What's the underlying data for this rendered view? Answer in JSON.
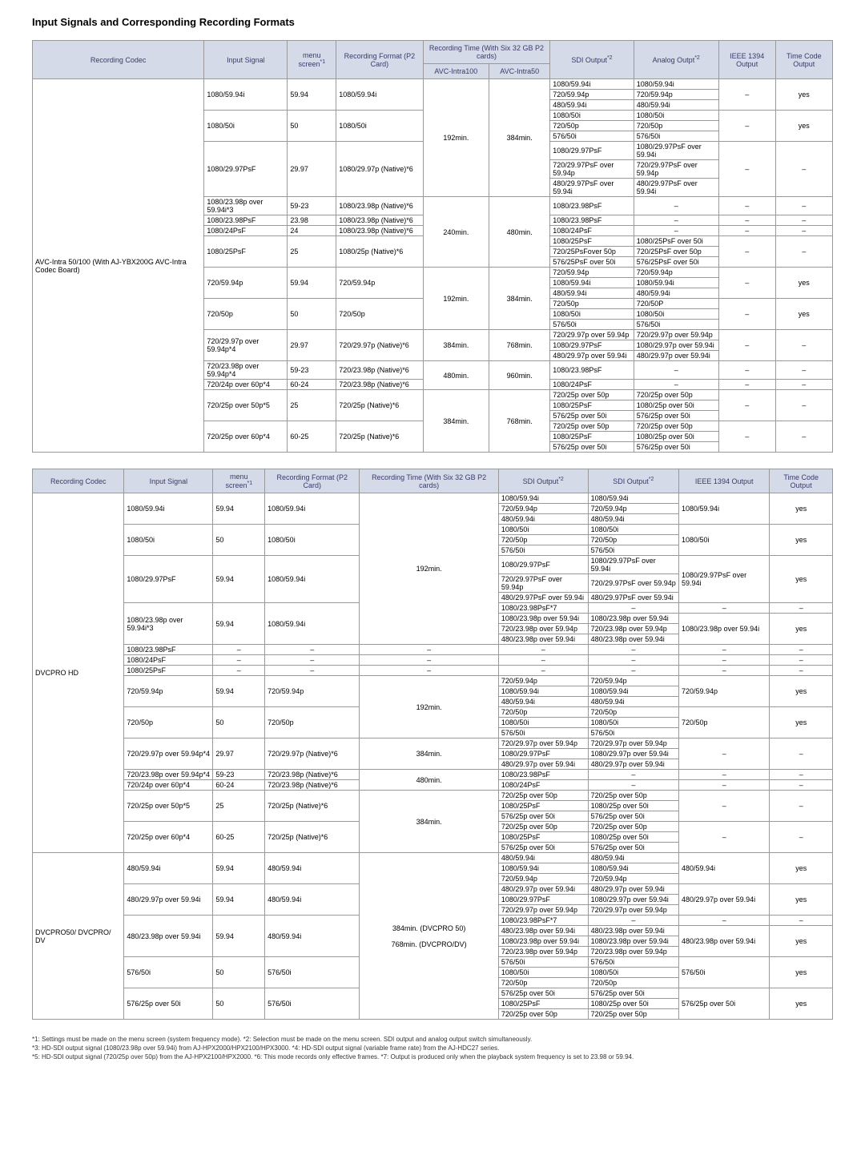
{
  "title": "Input Signals and Corresponding Recording Formats",
  "table1": {
    "headers": {
      "codec": "Recording Codec",
      "input": "Input Signal",
      "menu": "menu screen",
      "menu_sup": "*1",
      "format": "Recording Format (P2 Card)",
      "rectime": "Recording Time (With Six 32 GB P2 cards)",
      "avc100": "AVC-Intra100",
      "avc50": "AVC-Intra50",
      "sdi": "SDI Output",
      "sdi_sup": "*2",
      "analog": "Analog Outpt",
      "analog_sup": "*2",
      "ieee": "IEEE 1394 Output",
      "tc": "Time Code Output"
    },
    "codec_label": "AVC-Intra 50/100 (With AJ-YBX200G AVC-Intra Codec Board)",
    "groups": [
      {
        "input": "1080/59.94i",
        "menu": "59.94",
        "format": "1080/59.94i",
        "rt100": "192min.",
        "rt50": "384min.",
        "rows": [
          {
            "sdi": "1080/59.94i",
            "analog": "1080/59.94i",
            "ieee": "–",
            "tc": "yes"
          },
          {
            "sdi": "720/59.94p",
            "analog": "720/59.94p"
          },
          {
            "sdi": "480/59.94i",
            "analog": "480/59.94i"
          }
        ]
      },
      {
        "input": "1080/50i",
        "menu": "50",
        "format": "1080/50i",
        "rows": [
          {
            "sdi": "1080/50i",
            "analog": "1080/50i",
            "ieee": "–",
            "tc": "yes"
          },
          {
            "sdi": "720/50p",
            "analog": "720/50p"
          },
          {
            "sdi": "576/50i",
            "analog": "576/50i"
          }
        ]
      },
      {
        "input": "1080/29.97PsF",
        "menu": "29.97",
        "format": "1080/29.97p (Native)*6",
        "rows": [
          {
            "sdi": "1080/29.97PsF",
            "analog": "1080/29.97PsF over 59.94i",
            "ieee": "–",
            "tc": "–"
          },
          {
            "sdi": "720/29.97PsF over 59.94p",
            "analog": "720/29.97PsF over 59.94p"
          },
          {
            "sdi": "480/29.97PsF over 59.94i",
            "analog": "480/29.97PsF over 59.94i"
          }
        ]
      },
      {
        "input": "1080/23.98p over 59.94i*3",
        "menu": "59-23",
        "format": "1080/23.98p (Native)*6",
        "rt100": "240min.",
        "rt50": "480min.",
        "rows": [
          {
            "sdi": "1080/23.98PsF",
            "analog": "–",
            "ieee": "–",
            "tc": "–"
          }
        ]
      },
      {
        "input": "1080/23.98PsF",
        "menu": "23.98",
        "format": "1080/23.98p (Native)*6",
        "rows": [
          {
            "sdi": "1080/23.98PsF",
            "analog": "–",
            "ieee": "–",
            "tc": "–"
          }
        ]
      },
      {
        "input": "1080/24PsF",
        "menu": "24",
        "format": "1080/23.98p (Native)*6",
        "rows": [
          {
            "sdi": "1080/24PsF",
            "analog": "–",
            "ieee": "–",
            "tc": "–"
          }
        ]
      },
      {
        "input": "1080/25PsF",
        "menu": "25",
        "format": "1080/25p (Native)*6",
        "rows": [
          {
            "sdi": "1080/25PsF",
            "analog": "1080/25PsF over 50i",
            "ieee": "–",
            "tc": "–"
          },
          {
            "sdi": "720/25PsFover 50p",
            "analog": "720/25PsF over 50p"
          },
          {
            "sdi": "576/25PsF over 50i",
            "analog": "576/25PsF over 50i"
          }
        ]
      },
      {
        "input": "720/59.94p",
        "menu": "59.94",
        "format": "720/59.94p",
        "rt100": "192min.",
        "rt50": "384min.",
        "rows": [
          {
            "sdi": "720/59.94p",
            "analog": "720/59.94p",
            "ieee": "–",
            "tc": "yes"
          },
          {
            "sdi": "1080/59.94i",
            "analog": "1080/59.94i"
          },
          {
            "sdi": "480/59.94i",
            "analog": "480/59.94i"
          }
        ]
      },
      {
        "input": "720/50p",
        "menu": "50",
        "format": "720/50p",
        "rows": [
          {
            "sdi": "720/50p",
            "analog": "720/50P",
            "ieee": "–",
            "tc": "yes"
          },
          {
            "sdi": "1080/50i",
            "analog": "1080/50i"
          },
          {
            "sdi": "576/50i",
            "analog": "576/50i"
          }
        ]
      },
      {
        "input": "720/29.97p over 59.94p*4",
        "menu": "29.97",
        "format": "720/29.97p (Native)*6",
        "rt100": "384min.",
        "rt50": "768min.",
        "rows": [
          {
            "sdi": "720/29.97p over 59.94p",
            "analog": "720/29.97p over 59.94p",
            "ieee": "–",
            "tc": "–"
          },
          {
            "sdi": "1080/29.97PsF",
            "analog": "1080/29.97p over 59.94i"
          },
          {
            "sdi": "480/29.97p over 59.94i",
            "analog": "480/29.97p over 59.94i"
          }
        ]
      },
      {
        "input": "720/23.98p over 59.94p*4",
        "menu": "59-23",
        "format": "720/23.98p (Native)*6",
        "rt100": "480min.",
        "rt50": "960min.",
        "rows": [
          {
            "sdi": "1080/23.98PsF",
            "analog": "–",
            "ieee": "–",
            "tc": "–"
          }
        ]
      },
      {
        "input": "720/24p over 60p*4",
        "menu": "60-24",
        "format": "720/23.98p (Native)*6",
        "rows": [
          {
            "sdi": "1080/24PsF",
            "analog": "–",
            "ieee": "–",
            "tc": "–"
          }
        ]
      },
      {
        "input": "720/25p over 50p*5",
        "menu": "25",
        "format": "720/25p (Native)*6",
        "rt100": "384min.",
        "rt50": "768min.",
        "rows": [
          {
            "sdi": "720/25p over 50p",
            "analog": "720/25p over 50p",
            "ieee": "–",
            "tc": "–"
          },
          {
            "sdi": "1080/25PsF",
            "analog": "1080/25p over 50i"
          },
          {
            "sdi": "576/25p over 50i",
            "analog": "576/25p over 50i"
          }
        ]
      },
      {
        "input": "720/25p over 60p*4",
        "menu": "60-25",
        "format": "720/25p (Native)*6",
        "rows": [
          {
            "sdi": "720/25p over 50p",
            "analog": "720/25p over 50p",
            "ieee": "–",
            "tc": "–"
          },
          {
            "sdi": "1080/25PsF",
            "analog": "1080/25p over 50i"
          },
          {
            "sdi": "576/25p over 50i",
            "analog": "576/25p over 50i"
          }
        ]
      }
    ]
  },
  "table2": {
    "headers": {
      "codec": "Recording Codec",
      "input": "Input Signal",
      "menu": "menu screen",
      "menu_sup": "*1",
      "format": "Recording Format (P2 Card)",
      "rectime": "Recording Time (With Six 32 GB P2 cards)",
      "sdi1": "SDI Output",
      "sdi1_sup": "*2",
      "sdi2": "SDI Output",
      "sdi2_sup": "*2",
      "ieee": "IEEE 1394 Output",
      "tc": "Time Code Output"
    },
    "codec1_label": "DVCPRO HD",
    "codec2_label": "DVCPRO50/ DVCPRO/ DV",
    "dvcprohd_groups": [
      {
        "input": "1080/59.94i",
        "menu": "59.94",
        "format": "1080/59.94i",
        "rt": "192min.",
        "rows": [
          {
            "sdi1": "1080/59.94i",
            "sdi2": "1080/59.94i",
            "ieee": "1080/59.94i",
            "tc": "yes"
          },
          {
            "sdi1": "720/59.94p",
            "sdi2": "720/59.94p"
          },
          {
            "sdi1": "480/59.94i",
            "sdi2": "480/59.94i"
          }
        ]
      },
      {
        "input": "1080/50i",
        "menu": "50",
        "format": "1080/50i",
        "rows": [
          {
            "sdi1": "1080/50i",
            "sdi2": "1080/50i",
            "ieee": "1080/50i",
            "tc": "yes"
          },
          {
            "sdi1": "720/50p",
            "sdi2": "720/50p"
          },
          {
            "sdi1": "576/50i",
            "sdi2": "576/50i"
          }
        ]
      },
      {
        "input": "1080/29.97PsF",
        "menu": "59.94",
        "format": "1080/59.94i",
        "rows": [
          {
            "sdi1": "1080/29.97PsF",
            "sdi2": "1080/29.97PsF over 59.94i",
            "ieee": "1080/29.97PsF over 59.94i",
            "tc": "yes"
          },
          {
            "sdi1": "720/29.97PsF over 59.94p",
            "sdi2": "720/29.97PsF over 59.94p"
          },
          {
            "sdi1": "480/29.97PsF over 59.94i",
            "sdi2": "480/29.97PsF over 59.94i"
          }
        ]
      },
      {
        "input": "1080/23.98p over 59.94i*3",
        "menu": "59.94",
        "format": "1080/59.94i",
        "rows": [
          {
            "sdi1": "1080/23.98PsF*7",
            "sdi2": "–",
            "ieee": "–",
            "tc": "–"
          },
          {
            "sdi1": "1080/23.98p over 59.94i",
            "sdi2": "1080/23.98p over 59.94i",
            "ieee": "1080/23.98p over 59.94i",
            "tc": "yes"
          },
          {
            "sdi1": "720/23.98p over 59.94p",
            "sdi2": "720/23.98p over 59.94p"
          },
          {
            "sdi1": "480/23.98p over 59.94i",
            "sdi2": "480/23.98p over 59.94i"
          }
        ]
      },
      {
        "input": "1080/23.98PsF",
        "menu": "–",
        "format": "–",
        "rt": "–",
        "rows": [
          {
            "sdi1": "–",
            "sdi2": "–",
            "ieee": "–",
            "tc": "–"
          }
        ]
      },
      {
        "input": "1080/24PsF",
        "menu": "–",
        "format": "–",
        "rt": "–",
        "rows": [
          {
            "sdi1": "–",
            "sdi2": "–",
            "ieee": "–",
            "tc": "–"
          }
        ]
      },
      {
        "input": "1080/25PsF",
        "menu": "–",
        "format": "–",
        "rt": "–",
        "rows": [
          {
            "sdi1": "–",
            "sdi2": "–",
            "ieee": "–",
            "tc": "–"
          }
        ]
      },
      {
        "input": "720/59.94p",
        "menu": "59.94",
        "format": "720/59.94p",
        "rt": "192min.",
        "rows": [
          {
            "sdi1": "720/59.94p",
            "sdi2": "720/59.94p",
            "ieee": "720/59.94p",
            "tc": "yes"
          },
          {
            "sdi1": "1080/59.94i",
            "sdi2": "1080/59.94i"
          },
          {
            "sdi1": "480/59.94i",
            "sdi2": "480/59.94i"
          }
        ]
      },
      {
        "input": "720/50p",
        "menu": "50",
        "format": "720/50p",
        "rows": [
          {
            "sdi1": "720/50p",
            "sdi2": "720/50p",
            "ieee": "720/50p",
            "tc": "yes"
          },
          {
            "sdi1": "1080/50i",
            "sdi2": "1080/50i"
          },
          {
            "sdi1": "576/50i",
            "sdi2": "576/50i"
          }
        ]
      },
      {
        "input": "720/29.97p over 59.94p*4",
        "menu": "29.97",
        "format": "720/29.97p (Native)*6",
        "rt": "384min.",
        "rows": [
          {
            "sdi1": "720/29.97p over 59.94p",
            "sdi2": "720/29.97p over 59.94p",
            "ieee": "–",
            "tc": "–"
          },
          {
            "sdi1": "1080/29.97PsF",
            "sdi2": "1080/29.97p over 59.94i"
          },
          {
            "sdi1": "480/29.97p over 59.94i",
            "sdi2": "480/29.97p over 59.94i"
          }
        ]
      },
      {
        "input": "720/23.98p over 59.94p*4",
        "menu": "59-23",
        "format": "720/23.98p (Native)*6",
        "rt": "480min.",
        "rows": [
          {
            "sdi1": "1080/23.98PsF",
            "sdi2": "–",
            "ieee": "–",
            "tc": "–"
          }
        ]
      },
      {
        "input": "720/24p over 60p*4",
        "menu": "60-24",
        "format": "720/23.98p (Native)*6",
        "rows": [
          {
            "sdi1": "1080/24PsF",
            "sdi2": "–",
            "ieee": "–",
            "tc": "–"
          }
        ]
      },
      {
        "input": "720/25p over 50p*5",
        "menu": "25",
        "format": "720/25p (Native)*6",
        "rt": "384min.",
        "rows": [
          {
            "sdi1": "720/25p over 50p",
            "sdi2": "720/25p over 50p",
            "ieee": "–",
            "tc": "–"
          },
          {
            "sdi1": "1080/25PsF",
            "sdi2": "1080/25p over 50i"
          },
          {
            "sdi1": "576/25p over 50i",
            "sdi2": "576/25p over 50i"
          }
        ]
      },
      {
        "input": "720/25p over 60p*4",
        "menu": "60-25",
        "format": "720/25p (Native)*6",
        "rows": [
          {
            "sdi1": "720/25p over 50p",
            "sdi2": "720/25p over 50p",
            "ieee": "–",
            "tc": "–"
          },
          {
            "sdi1": "1080/25PsF",
            "sdi2": "1080/25p over 50i"
          },
          {
            "sdi1": "576/25p over 50i",
            "sdi2": "576/25p over 50i"
          }
        ]
      }
    ],
    "dvcpro50_groups": [
      {
        "input": "480/59.94i",
        "menu": "59.94",
        "format": "480/59.94i",
        "rt": "384min. (DVCPRO 50)",
        "rows": [
          {
            "sdi1": "480/59.94i",
            "sdi2": "480/59.94i",
            "ieee": "480/59.94i",
            "tc": "yes"
          },
          {
            "sdi1": "1080/59.94i",
            "sdi2": "1080/59.94i"
          },
          {
            "sdi1": "720/59.94p",
            "sdi2": "720/59.94p"
          }
        ]
      },
      {
        "input": "480/29.97p over 59.94i",
        "menu": "59.94",
        "format": "480/59.94i",
        "rows": [
          {
            "sdi1": "480/29.97p over 59.94i",
            "sdi2": "480/29.97p over 59.94i",
            "ieee": "480/29.97p over 59.94i",
            "tc": "yes"
          },
          {
            "sdi1": "1080/29.97PsF",
            "sdi2": "1080/29.97p over 59.94i"
          },
          {
            "sdi1": "720/29.97p over 59.94p",
            "sdi2": "720/29.97p over 59.94p"
          }
        ]
      },
      {
        "input": "480/23.98p over 59.94i",
        "menu": "59.94",
        "format": "480/59.94i",
        "rt2": "768min. (DVCPRO/DV)",
        "rows": [
          {
            "sdi1": "1080/23.98PsF*7",
            "sdi2": "–",
            "ieee": "–",
            "tc": "–"
          },
          {
            "sdi1": "480/23.98p over 59.94i",
            "sdi2": "480/23.98p over 59.94i",
            "ieee": "480/23.98p over 59.94i",
            "tc": "yes"
          },
          {
            "sdi1": "1080/23.98p over 59.94i",
            "sdi2": "1080/23.98p over 59.94i"
          },
          {
            "sdi1": "720/23.98p over 59.94p",
            "sdi2": "720/23.98p over 59.94p"
          }
        ]
      },
      {
        "input": "576/50i",
        "menu": "50",
        "format": "576/50i",
        "rows": [
          {
            "sdi1": "576/50i",
            "sdi2": "576/50i",
            "ieee": "576/50i",
            "tc": "yes"
          },
          {
            "sdi1": "1080/50i",
            "sdi2": "1080/50i"
          },
          {
            "sdi1": "720/50p",
            "sdi2": "720/50p"
          }
        ]
      },
      {
        "input": "576/25p over 50i",
        "menu": "50",
        "format": "576/50i",
        "rows": [
          {
            "sdi1": "576/25p over 50i",
            "sdi2": "576/25p over 50i",
            "ieee": "576/25p over 50i",
            "tc": "yes"
          },
          {
            "sdi1": "1080/25PsF",
            "sdi2": "1080/25p over 50i"
          },
          {
            "sdi1": "720/25p over 50p",
            "sdi2": "720/25p over 50p"
          }
        ]
      }
    ]
  },
  "footnotes": [
    "*1: Settings must be made on the menu screen (system frequency mode).  *2: Selection must be made on the menu screen. SDI output and analog output switch simultaneously.",
    "*3: HD-SDI output signal (1080/23.98p over 59.94i) from AJ-HPX2000/HPX2100/HPX3000.  *4: HD-SDI output signal (variable frame rate) from the AJ-HDC27 series.",
    "*5: HD-SDI output signal (720/25p over 50p) from the AJ-HPX2100/HPX2000.  *6: This mode records only effective frames.  *7: Output is produced only when the playback system frequency is set to 23.98 or 59.94."
  ]
}
